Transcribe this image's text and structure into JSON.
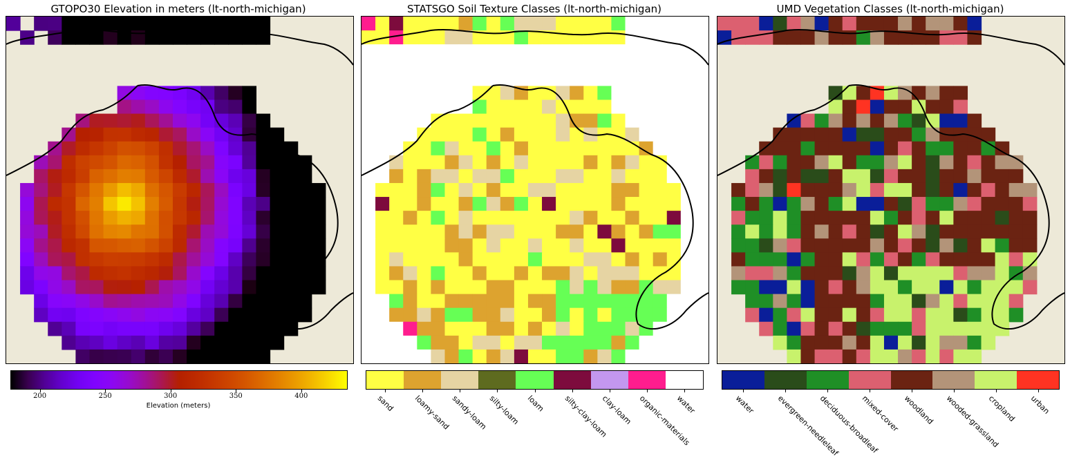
{
  "figure": {
    "titles": {
      "elevation": "GTOPO30 Elevation in meters (lt-north-michigan)",
      "soil": "STATSGO Soil Texture Classes (lt-north-michigan)",
      "vegetation": "UMD Vegetation Classes (lt-north-michigan)"
    }
  },
  "chart_data": [
    {
      "type": "heatmap",
      "title": "GTOPO30 Elevation in meters (lt-north-michigan)",
      "colorbar_label": "Elevation (meters)",
      "colormap": "gnuplot",
      "vmin": 178,
      "vmax": 435,
      "ticks": [
        200,
        250,
        300,
        350,
        400
      ],
      "tick_labels": [
        "200",
        "250",
        "300",
        "350",
        "400"
      ],
      "background_color": "#ede9d8"
    },
    {
      "type": "heatmap",
      "title": "STATSGO Soil Texture Classes (lt-north-michigan)",
      "legend": [
        "sand",
        "loamy-sand",
        "sandy-loam",
        "silty-loam",
        "loam",
        "silty-clay-loam",
        "clay-loam",
        "organic-materials",
        "water"
      ],
      "colors": [
        "#ffff44",
        "#dda32f",
        "#e6d4a3",
        "#5e6b1f",
        "#66ff55",
        "#7d0b3d",
        "#c397ef",
        "#ff1d8e",
        "#ffffff"
      ]
    },
    {
      "type": "heatmap",
      "title": "UMD Vegetation Classes (lt-north-michigan)",
      "legend": [
        "water",
        "evergreen-needleleaf",
        "deciduous-broadleaf",
        "mixed-cover",
        "woodland",
        "wooded-grassland",
        "cropland",
        "urban"
      ],
      "colors": [
        "#0a1e99",
        "#2a4c1a",
        "#1f8f26",
        "#dc6070",
        "#6b2312",
        "#b39479",
        "#c8f26c",
        "#ff3322"
      ]
    }
  ]
}
